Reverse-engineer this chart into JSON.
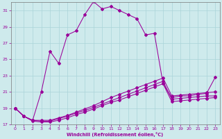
{
  "xlabel": "Windchill (Refroidissement éolien,°C)",
  "xlim": [
    -0.5,
    23.5
  ],
  "ylim": [
    17,
    32
  ],
  "xticks": [
    0,
    1,
    2,
    3,
    4,
    5,
    6,
    7,
    8,
    9,
    10,
    11,
    12,
    13,
    14,
    15,
    16,
    17,
    18,
    19,
    20,
    21,
    22,
    23
  ],
  "yticks": [
    17,
    19,
    21,
    23,
    25,
    27,
    29,
    31
  ],
  "background_color": "#ceeaec",
  "grid_color": "#aad4d8",
  "line_color": "#990099",
  "x": [
    0,
    1,
    2,
    3,
    4,
    5,
    6,
    7,
    8,
    9,
    10,
    11,
    12,
    13,
    14,
    15,
    16,
    17,
    18,
    19,
    20,
    21,
    22,
    23
  ],
  "y_main": [
    19.0,
    18.0,
    17.5,
    21.0,
    26.0,
    24.5,
    28.0,
    28.5,
    30.5,
    32.1,
    31.2,
    31.5,
    31.0,
    30.5,
    30.0,
    28.0,
    28.2,
    22.0,
    20.3,
    20.5,
    20.5,
    20.7,
    20.8,
    22.8
  ],
  "y_line1": [
    19.0,
    18.0,
    17.5,
    17.5,
    17.5,
    17.8,
    18.1,
    18.5,
    18.9,
    19.3,
    19.8,
    20.3,
    20.7,
    21.1,
    21.5,
    21.9,
    22.3,
    22.7,
    20.5,
    20.6,
    20.7,
    20.8,
    20.9,
    21.0
  ],
  "y_line2": [
    19.0,
    18.0,
    17.5,
    17.4,
    17.4,
    17.7,
    18.0,
    18.4,
    18.7,
    19.1,
    19.5,
    19.9,
    20.3,
    20.7,
    21.1,
    21.5,
    21.9,
    22.3,
    20.1,
    20.2,
    20.3,
    20.4,
    20.5,
    20.5
  ],
  "y_line3": [
    19.0,
    18.0,
    17.4,
    17.3,
    17.3,
    17.5,
    17.8,
    18.2,
    18.5,
    18.9,
    19.3,
    19.7,
    20.0,
    20.4,
    20.8,
    21.2,
    21.6,
    22.0,
    19.8,
    19.9,
    20.0,
    20.1,
    20.2,
    20.3
  ]
}
